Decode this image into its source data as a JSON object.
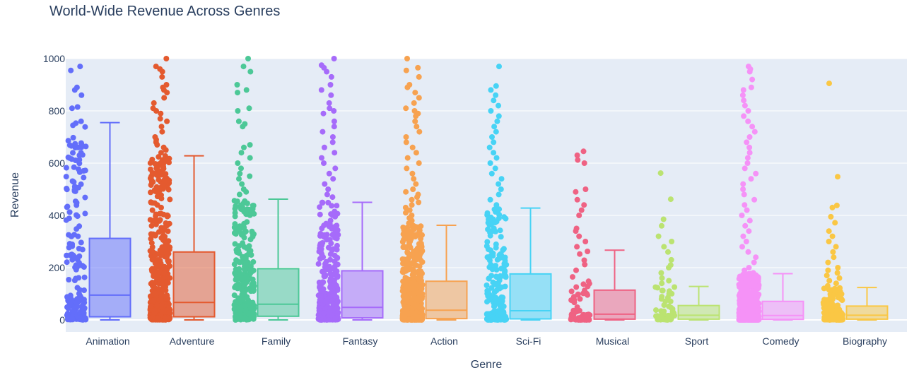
{
  "chart_data": {
    "type": "box",
    "title": "World-Wide Revenue Across Genres",
    "xlabel": "Genre",
    "ylabel": "Revenue",
    "ylim": [
      0,
      1000
    ],
    "yticks": [
      0,
      200,
      400,
      600,
      800,
      1000
    ],
    "grid": true,
    "points": "all-jittered",
    "series": [
      {
        "name": "Animation",
        "color": "#636efa",
        "min": 0,
        "q1": 12,
        "median": 95,
        "q3": 312,
        "max": 755,
        "n": 180,
        "outliers": [
          970,
          955,
          890,
          880,
          860,
          815,
          810,
          760,
          745,
          670,
          660,
          640,
          630,
          620
        ]
      },
      {
        "name": "Adventure",
        "color": "#e45a2f",
        "min": 0,
        "q1": 12,
        "median": 67,
        "q3": 260,
        "max": 628,
        "n": 520,
        "outliers": [
          1000,
          970,
          960,
          950,
          930,
          900,
          890,
          880,
          870,
          850,
          830,
          810,
          800,
          790,
          770,
          760,
          740,
          720,
          700,
          690,
          680,
          670,
          660,
          650,
          640
        ]
      },
      {
        "name": "Family",
        "color": "#4cc897",
        "min": 0,
        "q1": 14,
        "median": 60,
        "q3": 196,
        "max": 462,
        "n": 300,
        "outliers": [
          1000,
          970,
          950,
          900,
          880,
          870,
          810,
          800,
          760,
          750,
          740,
          670,
          660,
          640,
          620,
          600,
          580,
          560,
          550,
          540,
          520,
          500,
          490,
          480
        ]
      },
      {
        "name": "Fantasy",
        "color": "#a66bfa",
        "min": 0,
        "q1": 8,
        "median": 48,
        "q3": 188,
        "max": 450,
        "n": 330,
        "outliers": [
          1000,
          975,
          965,
          950,
          930,
          900,
          880,
          860,
          830,
          810,
          800,
          790,
          760,
          740,
          720,
          700,
          680,
          660,
          640,
          620,
          600,
          580,
          560,
          540,
          520,
          500,
          480,
          470
        ]
      },
      {
        "name": "Action",
        "color": "#f7a250",
        "min": 0,
        "q1": 5,
        "median": 37,
        "q3": 148,
        "max": 362,
        "n": 600,
        "outliers": [
          1000,
          965,
          955,
          930,
          900,
          890,
          870,
          850,
          830,
          810,
          800,
          790,
          780,
          760,
          740,
          720,
          700,
          680,
          660,
          640,
          620,
          600,
          580,
          560,
          540,
          520,
          500,
          490,
          480,
          470,
          460,
          450,
          440,
          430,
          420,
          410,
          400,
          390,
          380,
          370
        ]
      },
      {
        "name": "Sci-Fi",
        "color": "#47d3f5",
        "min": 0,
        "q1": 4,
        "median": 35,
        "q3": 176,
        "max": 428,
        "n": 230,
        "outliers": [
          970,
          895,
          880,
          860,
          840,
          820,
          800,
          780,
          760,
          740,
          720,
          700,
          680,
          660,
          640,
          620,
          600,
          580,
          560,
          540,
          520,
          500,
          480,
          460,
          440
        ]
      },
      {
        "name": "Musical",
        "color": "#ef6283",
        "min": 0,
        "q1": 3,
        "median": 22,
        "q3": 114,
        "max": 267,
        "n": 80,
        "outliers": [
          645,
          630,
          612,
          600,
          500,
          490,
          460,
          440,
          420,
          400,
          350,
          340,
          320,
          300,
          280
        ]
      },
      {
        "name": "Sport",
        "color": "#bbe371",
        "min": 0,
        "q1": 3,
        "median": 18,
        "q3": 55,
        "max": 128,
        "n": 60,
        "outliers": [
          562,
          462,
          385,
          360,
          320,
          300,
          280,
          260,
          230,
          210,
          200,
          180,
          160,
          150,
          140
        ]
      },
      {
        "name": "Comedy",
        "color": "#f592f7",
        "min": 0,
        "q1": 2,
        "median": 17,
        "q3": 71,
        "max": 177,
        "n": 700,
        "outliers": [
          970,
          960,
          950,
          920,
          890,
          880,
          860,
          840,
          820,
          800,
          780,
          760,
          740,
          720,
          700,
          680,
          660,
          640,
          620,
          600,
          580,
          560,
          540,
          520,
          500,
          480,
          460,
          440,
          420,
          400,
          380,
          360,
          340,
          320,
          300,
          280,
          260,
          240,
          220,
          200,
          190,
          180
        ]
      },
      {
        "name": "Biography",
        "color": "#fac744",
        "min": 0,
        "q1": 3,
        "median": 18,
        "q3": 53,
        "max": 124,
        "n": 150,
        "outliers": [
          905,
          548,
          438,
          430,
          395,
          372,
          340,
          320,
          300,
          280,
          260,
          240,
          220,
          200,
          190,
          180,
          170,
          160,
          150,
          140,
          130
        ]
      }
    ]
  }
}
